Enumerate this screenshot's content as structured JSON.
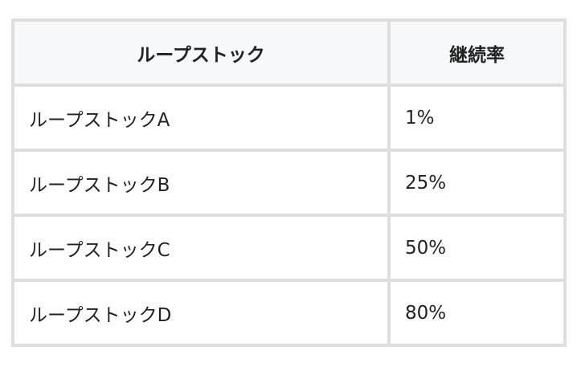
{
  "table": {
    "headers": [
      "ループストック",
      "継続率"
    ],
    "rows": [
      [
        "ループストックA",
        "1%"
      ],
      [
        "ループストックB",
        "25%"
      ],
      [
        "ループストックC",
        "50%"
      ],
      [
        "ループストックD",
        "80%"
      ]
    ]
  }
}
